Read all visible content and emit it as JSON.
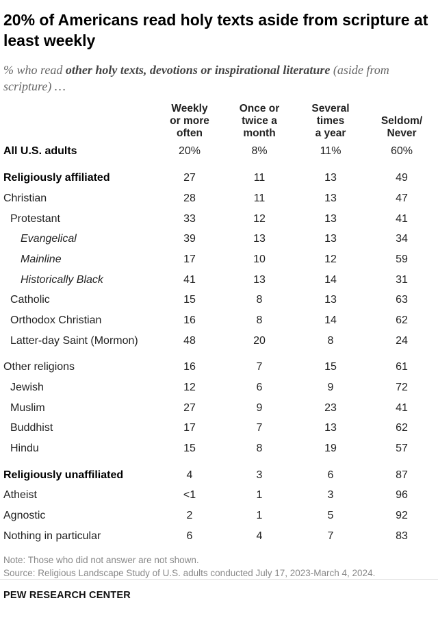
{
  "title": "20% of Americans read holy texts aside from scripture at least weekly",
  "subtitle": {
    "prefix": "% who read ",
    "emphasis": "other holy texts, devotions or inspirational literature",
    "suffix": " (aside from scripture) …"
  },
  "chart_data": {
    "type": "table",
    "columns": [
      "Weekly or more often",
      "Once or twice a month",
      "Several times a year",
      "Seldom/ Never"
    ],
    "rows": [
      {
        "label": "All U.S. adults",
        "style": "bold",
        "indent": 0,
        "values": [
          "20%",
          "8%",
          "11%",
          "60%"
        ]
      },
      {
        "label": "Religiously affiliated",
        "style": "bold",
        "indent": 0,
        "values": [
          "27",
          "11",
          "13",
          "49"
        ]
      },
      {
        "label": "Christian",
        "style": "normal",
        "indent": 0,
        "values": [
          "28",
          "11",
          "13",
          "47"
        ]
      },
      {
        "label": "Protestant",
        "style": "normal",
        "indent": 1,
        "values": [
          "33",
          "12",
          "13",
          "41"
        ]
      },
      {
        "label": "Evangelical",
        "style": "italic",
        "indent": 2,
        "values": [
          "39",
          "13",
          "13",
          "34"
        ]
      },
      {
        "label": "Mainline",
        "style": "italic",
        "indent": 2,
        "values": [
          "17",
          "10",
          "12",
          "59"
        ]
      },
      {
        "label": "Historically Black",
        "style": "italic",
        "indent": 2,
        "values": [
          "41",
          "13",
          "14",
          "31"
        ]
      },
      {
        "label": "Catholic",
        "style": "normal",
        "indent": 1,
        "values": [
          "15",
          "8",
          "13",
          "63"
        ]
      },
      {
        "label": "Orthodox Christian",
        "style": "normal",
        "indent": 1,
        "values": [
          "16",
          "8",
          "14",
          "62"
        ]
      },
      {
        "label": "Latter-day Saint (Mormon)",
        "style": "normal",
        "indent": 1,
        "values": [
          "48",
          "20",
          "8",
          "24"
        ]
      },
      {
        "label": "Other religions",
        "style": "normal",
        "indent": 0,
        "values": [
          "16",
          "7",
          "15",
          "61"
        ]
      },
      {
        "label": "Jewish",
        "style": "normal",
        "indent": 1,
        "values": [
          "12",
          "6",
          "9",
          "72"
        ]
      },
      {
        "label": "Muslim",
        "style": "normal",
        "indent": 1,
        "values": [
          "27",
          "9",
          "23",
          "41"
        ]
      },
      {
        "label": "Buddhist",
        "style": "normal",
        "indent": 1,
        "values": [
          "17",
          "7",
          "13",
          "62"
        ]
      },
      {
        "label": "Hindu",
        "style": "normal",
        "indent": 1,
        "values": [
          "15",
          "8",
          "19",
          "57"
        ]
      },
      {
        "label": "Religiously unaffiliated",
        "style": "bold",
        "indent": 0,
        "values": [
          "4",
          "3",
          "6",
          "87"
        ]
      },
      {
        "label": "Atheist",
        "style": "normal",
        "indent": 0,
        "values": [
          "<1",
          "1",
          "3",
          "96"
        ]
      },
      {
        "label": "Agnostic",
        "style": "normal",
        "indent": 0,
        "values": [
          "2",
          "1",
          "5",
          "92"
        ]
      },
      {
        "label": "Nothing in particular",
        "style": "normal",
        "indent": 0,
        "values": [
          "6",
          "4",
          "7",
          "83"
        ]
      }
    ]
  },
  "footer": {
    "note": "Note: Those who did not answer are not shown.",
    "source": "Source: Religious Landscape Study of U.S. adults conducted July 17, 2023-March 4, 2024.",
    "brand": "PEW RESEARCH CENTER"
  }
}
